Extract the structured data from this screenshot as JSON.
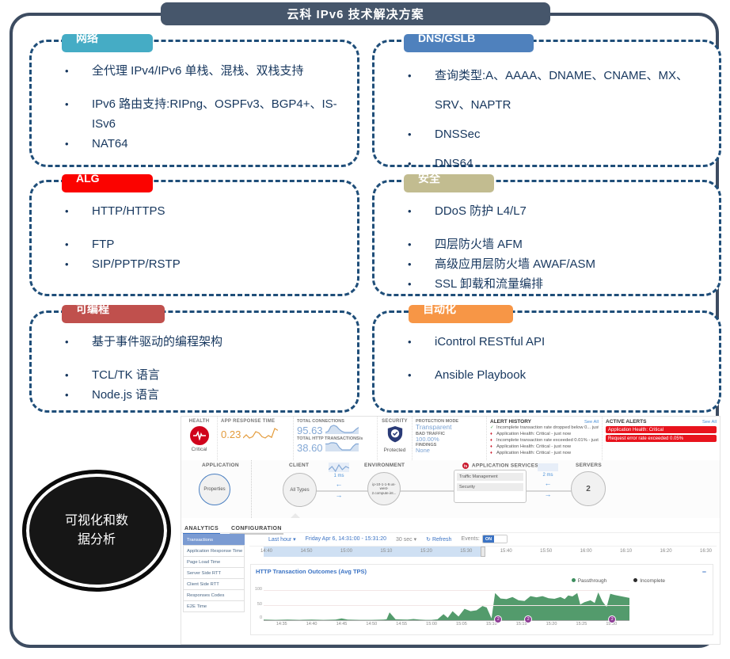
{
  "slide": {
    "title": "云科 IPv6 技术解决方案"
  },
  "icons": {
    "chevron_down": "▾",
    "refresh_glyph": "↻",
    "collapse_glyph": "−",
    "arrow_left": "←",
    "arrow_right": "→",
    "f5_logo": "f5",
    "health_info": "◦"
  },
  "boxes": [
    {
      "label": "网络",
      "color": "#45ACC5",
      "bullets": [
        {
          "text": "全代理 IPv4/IPv6 单栈、混栈、双栈支持"
        },
        {
          "text": "IPv6 路由支持:RIPng、OSPFv3、BGP4+、IS-ISv6",
          "gap": true
        },
        {
          "text": "NAT64"
        }
      ]
    },
    {
      "label": "DNS/GSLB",
      "color": "#4F81BD",
      "bullets": [
        {
          "text": "查询类型:A、AAAA、DNAME、CNAME、MX、SRV、NAPTR"
        },
        {
          "text": "DNSSec"
        },
        {
          "text": "DNS64"
        }
      ]
    },
    {
      "label": "ALG",
      "color": "#FB0300",
      "bullets": [
        {
          "text": "HTTP/HTTPS"
        },
        {
          "text": "FTP",
          "gap": true
        },
        {
          "text": "SIP/PPTP/RSTP"
        }
      ]
    },
    {
      "label": "安全",
      "color": "#C2BC90",
      "bullets": [
        {
          "text": "DDoS 防护 L4/L7"
        },
        {
          "text": "四层防火墙 AFM",
          "gap": true
        },
        {
          "text": "高级应用层防火墙 AWAF/ASM"
        },
        {
          "text": "SSL 卸载和流量编排"
        }
      ]
    },
    {
      "label": "可编程",
      "color": "#C0504D",
      "bullets": [
        {
          "text": "基于事件驱动的编程架构"
        },
        {
          "text": "TCL/TK 语言",
          "gap": true
        },
        {
          "text": "Node.js 语言"
        }
      ]
    },
    {
      "label": "自动化",
      "color": "#F79646",
      "bullets": [
        {
          "text": "iControl RESTful API"
        },
        {
          "text": "Ansible Playbook",
          "gap": true
        }
      ]
    }
  ],
  "ellipse": {
    "line1": "可视化和数",
    "line2": "据分析"
  },
  "dashboard": {
    "health": {
      "label": "HEALTH",
      "status": "Critical",
      "icon": "heartbeat-icon"
    },
    "kpis": [
      {
        "label": "APP RESPONSE TIME",
        "value": "0.23",
        "color": "#E39B3B",
        "spark": [
          2,
          2.5,
          2,
          2.2,
          3,
          2.8,
          2.2,
          2,
          2.4,
          2.1,
          3.5,
          3.2
        ]
      },
      {
        "label": "TOTAL CONNECTIONS",
        "value": "95.63",
        "color": "#85A9D6",
        "spark": [
          2,
          3,
          8,
          9,
          8,
          5,
          3,
          2,
          2,
          2,
          2.5,
          5,
          7
        ]
      },
      {
        "label": "TOTAL HTTP TRANSACTIONS/s",
        "value": "38.60",
        "color": "#85A9D6",
        "spark": [
          6,
          6,
          7,
          7,
          6.5,
          3,
          1,
          1,
          1,
          1,
          4,
          6,
          6
        ]
      }
    ],
    "security": {
      "label": "SECURITY",
      "status": "Protected",
      "icon": "shield-check-icon"
    },
    "protection": {
      "mode_label": "PROTECTION MODE",
      "mode": "Transparent",
      "bad_label": "BAD TRAFFIC",
      "bad": "100.00%",
      "findings_label": "FINDINGS",
      "findings": "None"
    },
    "alert_history": {
      "title": "ALERT HISTORY",
      "see_all": "See All",
      "items": [
        {
          "is_ok": true,
          "icon": "check-icon",
          "glyph": "✓",
          "text": "Incomplete transaction rate dropped below 0... just now"
        },
        {
          "is_ok": false,
          "icon": "alert-icon",
          "glyph": "♦",
          "text": "Application Health: Critical - just now"
        },
        {
          "is_ok": false,
          "icon": "alert-icon",
          "glyph": "♦",
          "text": "Incomplete transaction rate exceeded 0.01% - just now"
        },
        {
          "is_ok": false,
          "icon": "alert-icon",
          "glyph": "♦",
          "text": "Application Health: Critical - just now"
        },
        {
          "is_ok": false,
          "icon": "alert-icon",
          "glyph": "♦",
          "text": "Application Health: Critical - just now"
        }
      ]
    },
    "active_alerts": {
      "title": "ACTIVE ALERTS",
      "see_all": "See All",
      "items": [
        {
          "text": "Application Health: Critical"
        },
        {
          "text": "Request error rate exceeded 0.05%"
        }
      ]
    },
    "topology": {
      "application_label": "APPLICATION",
      "application_node": "Properties",
      "client_label": "CLIENT",
      "client_node": "All Types",
      "client_latency": "1 ms",
      "client_spark": [
        3,
        5,
        2,
        6,
        3,
        5,
        4
      ],
      "environment_label": "ENVIRONMENT",
      "environment_node": "ip-10-1-1-9.us-west-2.compute.int...",
      "services_label": "APPLICATION SERVICES",
      "services": [
        {
          "text": "Traffic Management"
        },
        {
          "text": "Security"
        }
      ],
      "services_latency": "2 ms",
      "servers_label": "SERVERS",
      "servers_node": "2"
    },
    "tabs": [
      {
        "label": "ANALYTICS",
        "selected": true
      },
      {
        "label": "CONFIGURATION",
        "selected": false
      }
    ],
    "sidebar": [
      {
        "label": "Transactions",
        "selected": true
      },
      {
        "label": "Application Response Time"
      },
      {
        "label": "Page Load Time"
      },
      {
        "label": "Server Side RTT"
      },
      {
        "label": "Client Side RTT"
      },
      {
        "label": "Responses Codes"
      },
      {
        "label": "E2E Time"
      }
    ],
    "timeline": {
      "range": "Last hour",
      "date": "Friday Apr 6, 14:31:00 - 15:31:20",
      "interval": "30 sec",
      "refresh": "Refresh",
      "events_label": "Events:",
      "events_state": "ON",
      "ticks": [
        {
          "t": "14:40"
        },
        {
          "t": "14:50"
        },
        {
          "t": "15:00"
        },
        {
          "t": "15:10"
        },
        {
          "t": "15:20"
        },
        {
          "t": "15:30"
        },
        {
          "t": "15:40"
        },
        {
          "t": "15:50"
        },
        {
          "t": "16:00"
        },
        {
          "t": "16:10"
        },
        {
          "t": "16:20"
        },
        {
          "t": "16:30"
        }
      ]
    }
  },
  "chart_data": {
    "type": "area",
    "title": "HTTP Transaction Outcomes (Avg TPS)",
    "legend": [
      {
        "name": "Passthrough",
        "color": "#3E8E5E"
      },
      {
        "name": "Incomplete",
        "color": "#2b2b2b"
      }
    ],
    "x_start": "14:32",
    "x_end": "15:33",
    "x_ticks": [
      {
        "t": "14:35"
      },
      {
        "t": "14:40"
      },
      {
        "t": "14:45"
      },
      {
        "t": "14:50"
      },
      {
        "t": "14:55"
      },
      {
        "t": "15:00"
      },
      {
        "t": "15:05"
      },
      {
        "t": "15:10"
      },
      {
        "t": "15:15"
      },
      {
        "t": "15:20"
      },
      {
        "t": "15:25"
      },
      {
        "t": "15:30"
      }
    ],
    "ylim": [
      0,
      100
    ],
    "y_ticks": [
      0,
      50,
      100
    ],
    "series": [
      {
        "name": "Passthrough",
        "color": "#44935f",
        "points": [
          [
            0,
            2
          ],
          [
            2,
            1
          ],
          [
            4,
            2
          ],
          [
            6,
            1
          ],
          [
            8,
            2
          ],
          [
            10,
            1
          ],
          [
            12,
            2
          ],
          [
            13,
            6
          ],
          [
            14,
            2
          ],
          [
            16,
            1
          ],
          [
            18,
            1
          ],
          [
            20,
            2
          ],
          [
            20.5,
            3
          ],
          [
            21,
            26
          ],
          [
            22,
            3
          ],
          [
            24,
            2
          ],
          [
            25,
            4
          ],
          [
            26,
            2
          ],
          [
            27,
            1
          ],
          [
            28,
            1
          ],
          [
            29,
            3
          ],
          [
            30,
            20
          ],
          [
            30.7,
            8
          ],
          [
            31.5,
            30
          ],
          [
            32.5,
            12
          ],
          [
            33.5,
            38
          ],
          [
            34.5,
            30
          ],
          [
            35.5,
            33
          ],
          [
            36.5,
            47
          ],
          [
            37.2,
            42
          ],
          [
            38,
            6
          ],
          [
            38.6,
            90
          ],
          [
            39.5,
            72
          ],
          [
            40.5,
            70
          ],
          [
            41.5,
            77
          ],
          [
            42.5,
            66
          ],
          [
            43.5,
            64
          ],
          [
            44.5,
            80
          ],
          [
            45.5,
            76
          ],
          [
            46.5,
            80
          ],
          [
            47.5,
            73
          ],
          [
            48.5,
            71
          ],
          [
            49.5,
            77
          ],
          [
            50.2,
            70
          ],
          [
            50.8,
            82
          ],
          [
            51.5,
            79
          ],
          [
            52.3,
            90
          ],
          [
            52.8,
            52
          ],
          [
            53.5,
            60
          ],
          [
            54.5,
            66
          ],
          [
            55.2,
            57
          ],
          [
            55.8,
            92
          ],
          [
            56.5,
            62
          ],
          [
            57.2,
            44
          ],
          [
            57.8,
            88
          ],
          [
            58.5,
            84
          ],
          [
            59.5,
            80
          ],
          [
            60.5,
            76
          ],
          [
            61,
            74
          ]
        ]
      }
    ],
    "events": [
      {
        "time": "15:11",
        "count": 2
      },
      {
        "time": "15:16",
        "count": 2
      },
      {
        "time": "15:30",
        "count": 2
      }
    ]
  }
}
